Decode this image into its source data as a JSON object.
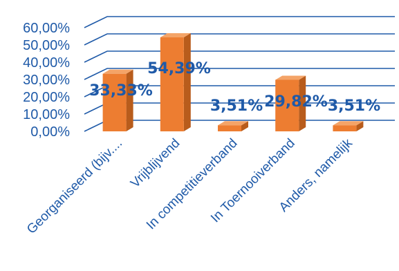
{
  "chart_data": {
    "type": "bar",
    "style": "3d",
    "categories": [
      "Georganiseerd (bijv....",
      "Vrijblijvend",
      "In competitieverband",
      "In Toernooiverband",
      "Anders, namelijk"
    ],
    "values": [
      33.33,
      54.39,
      3.51,
      29.82,
      3.51
    ],
    "data_labels": [
      "33,33%",
      "54,39%",
      "3,51%",
      "29,82%",
      "3,51%"
    ],
    "y_ticks": [
      "0,00%",
      "10,00%",
      "20,00%",
      "30,00%",
      "40,00%",
      "50,00%",
      "60,00%"
    ],
    "ylim": [
      0,
      60
    ],
    "grid": true,
    "legend": "none",
    "colors": {
      "bar_front": "#ed7d31",
      "bar_side": "#b85c1c",
      "bar_top": "#f4a468",
      "grid": "#1f5aa8",
      "text": "#1f5aa8"
    }
  }
}
